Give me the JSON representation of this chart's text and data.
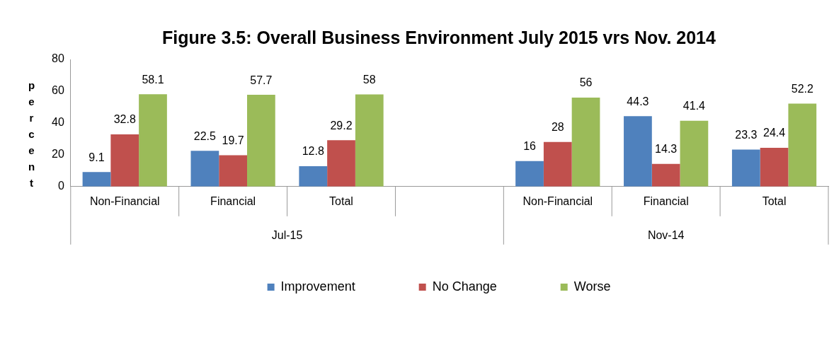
{
  "chart_data": {
    "type": "bar",
    "title": "Figure 3.5: Overall Business Environment July 2015 vrs Nov. 2014",
    "ylabel": "percent",
    "categories": [
      "Non-Financial",
      "Financial",
      "Total",
      null,
      "Non-Financial",
      "Financial",
      "Total"
    ],
    "annotations": [
      "Jul-15",
      "Nov-14"
    ],
    "series": [
      {
        "name": "Improvement",
        "color": "#4f81bd",
        "values": [
          9.1,
          22.5,
          12.8,
          null,
          16,
          44.3,
          23.3
        ]
      },
      {
        "name": "No Change",
        "color": "#c0504d",
        "values": [
          32.8,
          19.7,
          29.2,
          null,
          28,
          14.3,
          24.4
        ]
      },
      {
        "name": "Worse",
        "color": "#9bbb59",
        "values": [
          58.1,
          57.7,
          58,
          null,
          56,
          41.4,
          52.2
        ]
      }
    ],
    "ylim": [
      0,
      80
    ],
    "yticks": [
      0,
      20,
      40,
      60,
      80
    ],
    "grid": false,
    "legend": "bottom",
    "data_labels": true
  }
}
